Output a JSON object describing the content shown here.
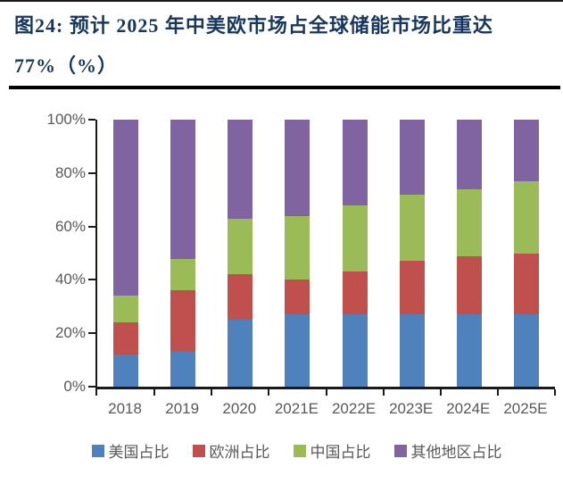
{
  "header": {
    "title_line1": "图24: 预计 2025 年中美欧市场占全球储能市场比重达",
    "title_line2": "77%（%）",
    "title_color": "#17375e"
  },
  "chart_data": {
    "type": "bar",
    "stacked": true,
    "percent": true,
    "title": "预计 2025 年中美欧市场占全球储能市场比重达 77%（%）",
    "categories": [
      "2018",
      "2019",
      "2020",
      "2021E",
      "2022E",
      "2023E",
      "2024E",
      "2025E"
    ],
    "series": [
      {
        "name": "美国占比",
        "color": "#4f81bd",
        "values": [
          12,
          13,
          25,
          27,
          27,
          27,
          27,
          27
        ]
      },
      {
        "name": "欧洲占比",
        "color": "#c0504d",
        "values": [
          12,
          23,
          17,
          13,
          16,
          20,
          22,
          23
        ]
      },
      {
        "name": "中国占比",
        "color": "#9bbb59",
        "values": [
          10,
          12,
          21,
          24,
          25,
          25,
          25,
          27
        ]
      },
      {
        "name": "其他地区占比",
        "color": "#8064a2",
        "values": [
          66,
          52,
          37,
          36,
          32,
          28,
          26,
          23
        ]
      }
    ],
    "y_axis": {
      "min": 0,
      "max": 100,
      "tick_step": 20,
      "tick_labels": [
        "0%",
        "20%",
        "40%",
        "60%",
        "80%",
        "100%"
      ]
    },
    "xlabel": "",
    "ylabel": "",
    "grid": false,
    "legend_position": "bottom",
    "axis_color": "#1a1a1a",
    "tick_label_color": "#595959"
  }
}
